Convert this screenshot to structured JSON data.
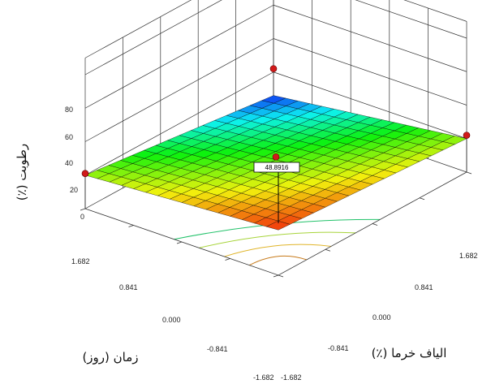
{
  "chart_data": {
    "type": "surface",
    "title": "",
    "zlabel": "رطوبت (٪)",
    "xlabel": "زمان (روز)",
    "ylabel": "الیاف خرما (٪)",
    "z_ticks": [
      "0",
      "20",
      "40",
      "60",
      "80"
    ],
    "x_ticks": [
      "1.682",
      "0.841",
      "0.000",
      "-0.841",
      "-1.682"
    ],
    "y_ticks": [
      "1.682",
      "0.841",
      "0.000",
      "-0.841",
      "-1.682"
    ],
    "zlim": [
      0,
      80
    ],
    "xlim": [
      -1.682,
      1.682
    ],
    "ylim": [
      -1.682,
      1.682
    ],
    "surface_corners": {
      "x_low_y_low": 27,
      "x_high_y_low": 20,
      "x_low_y_high": 20,
      "x_high_y_high": 6
    },
    "center_value": 48.8916,
    "center_label": "48.8916",
    "design_points": [
      {
        "x": -1.682,
        "y": 1.682,
        "z": 22
      },
      {
        "x": 1.682,
        "y": -1.682,
        "z": 21
      },
      {
        "x": 1.682,
        "y": 1.682,
        "z": 22
      },
      {
        "x": 0.0,
        "y": 0.0,
        "z": 20
      }
    ]
  }
}
